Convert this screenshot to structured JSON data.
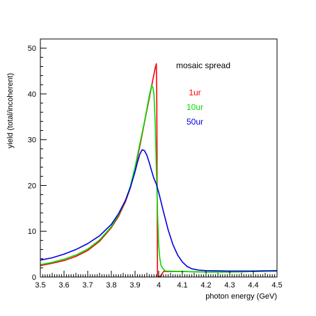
{
  "chart_data": {
    "type": "line",
    "xlabel": "photon energy (GeV)",
    "ylabel": "yield (total/incoherent)",
    "xlim": [
      3.5,
      4.5
    ],
    "ylim": [
      0,
      52
    ],
    "x_ticks": [
      "3.5",
      "3.6",
      "3.7",
      "3.8",
      "3.9",
      "4",
      "4.1",
      "4.2",
      "4.3",
      "4.4",
      "4.5"
    ],
    "y_ticks": [
      "0",
      "10",
      "20",
      "30",
      "40",
      "50"
    ],
    "grid": false,
    "legend": {
      "title": "mosaic spread",
      "placement": "top-right"
    },
    "series": [
      {
        "name": "1ur",
        "color": "#ff0000",
        "points": [
          [
            3.5,
            2.5
          ],
          [
            3.55,
            3.0
          ],
          [
            3.6,
            3.6
          ],
          [
            3.65,
            4.5
          ],
          [
            3.7,
            5.8
          ],
          [
            3.75,
            7.8
          ],
          [
            3.8,
            10.8
          ],
          [
            3.83,
            13.2
          ],
          [
            3.86,
            16.5
          ],
          [
            3.88,
            19.5
          ],
          [
            3.9,
            23.5
          ],
          [
            3.92,
            28.5
          ],
          [
            3.94,
            33.8
          ],
          [
            3.96,
            39.0
          ],
          [
            3.975,
            43.0
          ],
          [
            3.985,
            45.6
          ],
          [
            3.99,
            46.6
          ],
          [
            3.992,
            38.0
          ],
          [
            3.995,
            0.3
          ],
          [
            4.0,
            0.0
          ],
          [
            4.01,
            0.3
          ],
          [
            4.02,
            1.2
          ],
          [
            4.1,
            1.2
          ],
          [
            4.2,
            1.1
          ],
          [
            4.3,
            1.1
          ],
          [
            4.4,
            1.2
          ],
          [
            4.5,
            1.3
          ]
        ]
      },
      {
        "name": "10ur",
        "color": "#00dd00",
        "points": [
          [
            3.5,
            2.7
          ],
          [
            3.55,
            3.2
          ],
          [
            3.6,
            3.9
          ],
          [
            3.65,
            4.8
          ],
          [
            3.7,
            6.1
          ],
          [
            3.75,
            8.1
          ],
          [
            3.8,
            11.0
          ],
          [
            3.83,
            13.5
          ],
          [
            3.86,
            16.8
          ],
          [
            3.88,
            19.8
          ],
          [
            3.9,
            24.0
          ],
          [
            3.92,
            29.0
          ],
          [
            3.94,
            34.0
          ],
          [
            3.96,
            39.5
          ],
          [
            3.97,
            41.8
          ],
          [
            3.975,
            41.5
          ],
          [
            3.98,
            40.0
          ],
          [
            3.985,
            34.0
          ],
          [
            3.99,
            24.0
          ],
          [
            3.995,
            14.0
          ],
          [
            4.0,
            7.0
          ],
          [
            4.005,
            4.0
          ],
          [
            4.01,
            2.5
          ],
          [
            4.02,
            1.7
          ],
          [
            4.03,
            1.3
          ],
          [
            4.1,
            1.2
          ],
          [
            4.2,
            1.1
          ],
          [
            4.3,
            1.1
          ],
          [
            4.4,
            1.2
          ],
          [
            4.5,
            1.3
          ]
        ]
      },
      {
        "name": "50ur",
        "color": "#0000dd",
        "points": [
          [
            3.5,
            3.7
          ],
          [
            3.55,
            4.2
          ],
          [
            3.6,
            5.0
          ],
          [
            3.65,
            6.0
          ],
          [
            3.7,
            7.3
          ],
          [
            3.75,
            9.0
          ],
          [
            3.8,
            11.5
          ],
          [
            3.83,
            13.8
          ],
          [
            3.86,
            16.8
          ],
          [
            3.88,
            19.5
          ],
          [
            3.9,
            23.0
          ],
          [
            3.91,
            25.0
          ],
          [
            3.92,
            26.8
          ],
          [
            3.93,
            27.8
          ],
          [
            3.94,
            27.6
          ],
          [
            3.95,
            26.6
          ],
          [
            3.96,
            25.0
          ],
          [
            3.97,
            23.2
          ],
          [
            3.98,
            21.5
          ],
          [
            3.99,
            20.3
          ],
          [
            4.0,
            18.5
          ],
          [
            4.02,
            14.3
          ],
          [
            4.04,
            10.3
          ],
          [
            4.06,
            7.1
          ],
          [
            4.08,
            4.8
          ],
          [
            4.1,
            3.3
          ],
          [
            4.12,
            2.3
          ],
          [
            4.14,
            1.8
          ],
          [
            4.17,
            1.5
          ],
          [
            4.2,
            1.4
          ],
          [
            4.3,
            1.3
          ],
          [
            4.4,
            1.3
          ],
          [
            4.5,
            1.4
          ]
        ]
      }
    ]
  }
}
